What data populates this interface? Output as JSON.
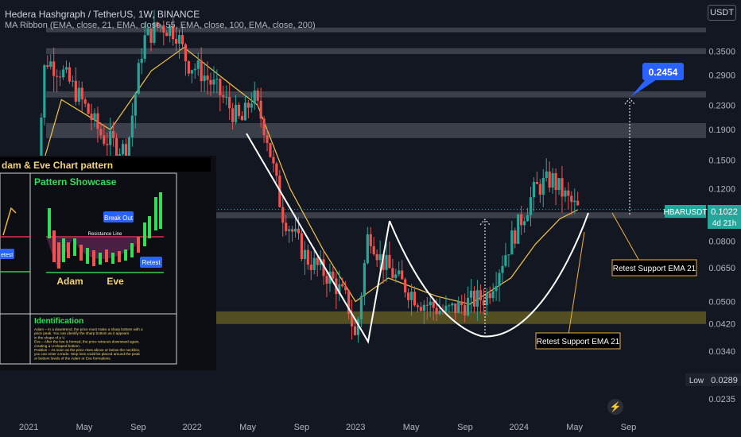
{
  "header": {
    "title": "Hedera Hashgraph / TetherUS, 1W, BINANCE",
    "indicator": "MA Ribbon (EMA, close, 21, EMA, close, 55, EMA, close, 100, EMA, close, 200)",
    "currency_button": "USDT"
  },
  "price_tags": {
    "symbol": "HBARUSDT",
    "last_price": "0.1022",
    "countdown": "4d 21h",
    "low_label": "Low",
    "low_value": "0.0289",
    "target_value": "0.2454"
  },
  "annotations": {
    "retest_1": "Retest Support EMA 21",
    "retest_2": "Retest Support EMA 21"
  },
  "inset": {
    "title": "dam & Eve Chart pattern",
    "showcase_title": "Pattern Showcase",
    "break_out": "Break Out",
    "resistance_line": "Resistance Line",
    "retest_left": "etest",
    "retest_right": "Retest",
    "adam": "Adam",
    "eve": "Eve",
    "identification_title": "Identification",
    "identification_text": [
      "Adam – In a downtrend, the price must make a sharp bottom with a",
      "price peak. You can identify the sharp bottom as it appears",
      "in the shape of a V.",
      "Eve – After the low is formed, the price retraces downward again,",
      "creating a U-shaped bottom.",
      "Position – As soon as the price rises above or below the neckline,",
      "you can enter a trade. Stop loss could be placed around the peak",
      "or bottom levels of the Adam or Eve formations."
    ]
  },
  "chart_data": {
    "type": "line",
    "scale": "log",
    "x_ticks": [
      "2021",
      "May",
      "Sep",
      "2022",
      "May",
      "Sep",
      "2023",
      "May",
      "Sep",
      "2024",
      "May",
      "Sep"
    ],
    "y_ticks": [
      "0.3500",
      "0.2900",
      "0.2300",
      "0.1900",
      "0.1500",
      "0.1200",
      "0.0800",
      "0.0650",
      "0.0500",
      "0.0420",
      "0.0340",
      "0.0235"
    ],
    "ylim": [
      0.021,
      0.46
    ],
    "series": [
      {
        "x": [
          2021.0,
          2021.1,
          2021.2,
          2021.3,
          2021.45,
          2021.6,
          2021.7,
          2021.8,
          2021.9,
          2021.97,
          2022.05,
          2022.15,
          2022.3,
          2022.37,
          2022.45,
          2022.55,
          2022.7,
          2022.85,
          2022.95,
          2023.0,
          2023.08,
          2023.15,
          2023.25,
          2023.4,
          2023.55,
          2023.7,
          2023.8,
          2023.95,
          2024.1,
          2024.2,
          2024.3,
          2024.36
        ],
        "y": [
          0.05,
          0.33,
          0.3,
          0.25,
          0.18,
          0.16,
          0.38,
          0.43,
          0.41,
          0.32,
          0.3,
          0.26,
          0.2,
          0.25,
          0.19,
          0.1,
          0.07,
          0.06,
          0.05,
          0.037,
          0.088,
          0.07,
          0.06,
          0.05,
          0.046,
          0.05,
          0.052,
          0.08,
          0.12,
          0.13,
          0.11,
          0.1022
        ]
      }
    ],
    "ema21": {
      "x": [
        2021.0,
        2021.2,
        2021.5,
        2021.75,
        2021.95,
        2022.2,
        2022.4,
        2022.6,
        2022.8,
        2023.0,
        2023.2,
        2023.5,
        2023.7,
        2023.95,
        2024.1,
        2024.25,
        2024.36
      ],
      "y": [
        0.1,
        0.24,
        0.19,
        0.3,
        0.36,
        0.28,
        0.23,
        0.12,
        0.075,
        0.05,
        0.06,
        0.052,
        0.049,
        0.06,
        0.078,
        0.095,
        0.102
      ]
    },
    "zones": [
      [
        0.405,
        0.42
      ],
      [
        0.342,
        0.358
      ],
      [
        0.244,
        0.256
      ],
      [
        0.178,
        0.2
      ],
      [
        0.0955,
        0.1
      ],
      [
        0.042,
        0.0463
      ]
    ],
    "target": 0.2454,
    "low": 0.0289
  }
}
